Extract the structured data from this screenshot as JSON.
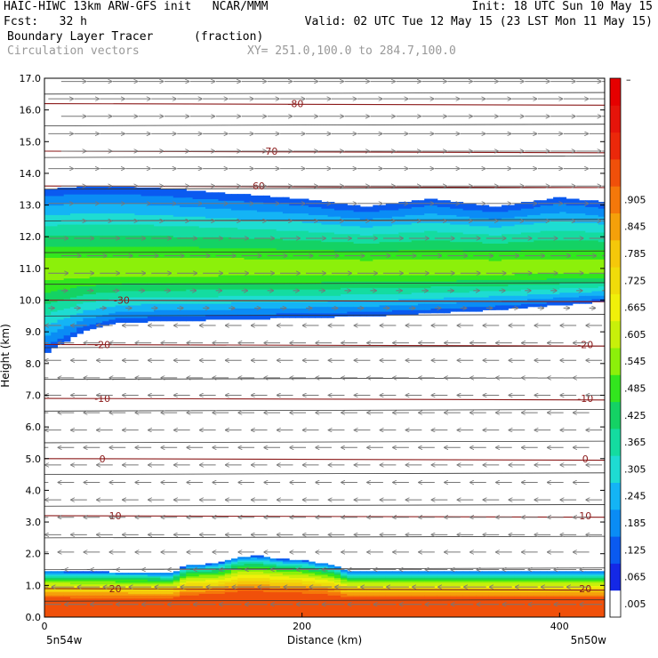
{
  "header": {
    "line1_left": "HAIC-HIWC 13km ARW-GFS init   NCAR/MMM",
    "line1_right": "Init: 18 UTC Sun 10 May 15",
    "line2_left": "Fcst:   32 h",
    "line2_right": "Valid: 02 UTC Tue 12 May 15 (23 LST Mon 11 May 15)",
    "line3_left": "Boundary Layer Tracer",
    "line3_mid": "(fraction)",
    "line4_left": "Circulation vectors",
    "line4_mid": "XY= 251.0,100.0 to 284.7,100.0"
  },
  "chart_data": {
    "type": "heatmap",
    "xlabel": "Distance (km)",
    "ylabel": "Height (km)",
    "xlim": [
      0,
      435
    ],
    "ylim": [
      0,
      17
    ],
    "x_ticks": [
      0,
      200,
      400
    ],
    "x_tick_labels": [
      "0",
      "200",
      "400"
    ],
    "x_corner_labels": {
      "left": "5n54w",
      "right": "5n50w"
    },
    "y_ticks": [
      0,
      1,
      2,
      3,
      4,
      5,
      6,
      7,
      8,
      9,
      10,
      11,
      12,
      13,
      14,
      15,
      16,
      17
    ],
    "y_tick_labels": [
      "0.0",
      "1.0",
      "2.0",
      "3.0",
      "4.0",
      "5.0",
      "6.0",
      "7.0",
      "8.0",
      "9.0",
      "10.0",
      "11.0",
      "12.0",
      "13.0",
      "14.0",
      "15.0",
      "16.0",
      "17.0"
    ],
    "colorbar": {
      "labels": [
        ".005",
        ".065",
        ".125",
        ".185",
        ".245",
        ".305",
        ".365",
        ".425",
        ".485",
        ".545",
        ".605",
        ".665",
        ".725",
        ".785",
        ".845",
        ".905"
      ],
      "top_label": "–",
      "colors": [
        "#ffffff",
        "#1428e6",
        "#0a5af0",
        "#0a8cf5",
        "#14b4f5",
        "#1edcd2",
        "#14dca0",
        "#14d264",
        "#32e61e",
        "#8cf00a",
        "#c8f00a",
        "#f0f00a",
        "#f0dc0a",
        "#f5c80a",
        "#f5a00a",
        "#f5780a",
        "#f0500a",
        "#eb280a",
        "#e6140a",
        "#e60000"
      ]
    },
    "tracer_upper_layer": {
      "x": [
        0,
        30,
        60,
        100,
        150,
        200,
        250,
        300,
        350,
        400,
        435
      ],
      "top_km": [
        13.5,
        13.6,
        13.6,
        13.5,
        13.35,
        13.2,
        12.95,
        13.2,
        12.95,
        13.25,
        13.1
      ],
      "bottom_km": [
        8.3,
        9.0,
        9.3,
        9.35,
        9.4,
        9.45,
        9.5,
        9.6,
        9.7,
        9.85,
        9.95
      ],
      "max_fraction": 0.545,
      "core_km": 11.0
    },
    "tracer_boundary_layer": {
      "x": [
        0,
        100,
        110,
        135,
        150,
        165,
        180,
        200,
        225,
        235,
        260,
        435
      ],
      "top_km": [
        1.45,
        1.4,
        1.65,
        1.7,
        1.9,
        1.95,
        1.85,
        1.8,
        1.65,
        1.45,
        1.45,
        1.45
      ],
      "max_fraction": 0.965
    },
    "contours": [
      {
        "label": "-80",
        "height_km": 16.2
      },
      {
        "label": "-70",
        "height_km": 14.7
      },
      {
        "label": "-60",
        "height_km": 13.6
      },
      {
        "label": "-30",
        "height_km": 10.0
      },
      {
        "label": "-20",
        "height_km": 8.6
      },
      {
        "label": "-10",
        "height_km": 6.9
      },
      {
        "label": "0",
        "height_km": 5.0
      },
      {
        "label": "10",
        "height_km": 3.2
      },
      {
        "label": "20",
        "height_km": 0.9
      }
    ],
    "contour_labels": [
      {
        "text": "-80",
        "x": 195,
        "y": 16.2
      },
      {
        "text": "-70",
        "x": 175,
        "y": 14.7
      },
      {
        "text": "-60",
        "x": 165,
        "y": 13.6
      },
      {
        "text": "-30",
        "x": 60,
        "y": 10.0
      },
      {
        "text": "-20",
        "x": 45,
        "y": 8.6
      },
      {
        "text": "-20",
        "x": 420,
        "y": 8.6
      },
      {
        "text": "-10",
        "x": 45,
        "y": 6.9
      },
      {
        "text": "-10",
        "x": 420,
        "y": 6.9
      },
      {
        "text": "0",
        "x": 45,
        "y": 5.0
      },
      {
        "text": "0",
        "x": 420,
        "y": 5.0
      },
      {
        "text": "10",
        "x": 55,
        "y": 3.2
      },
      {
        "text": "10",
        "x": 420,
        "y": 3.2
      },
      {
        "text": "20",
        "x": 55,
        "y": 0.9
      },
      {
        "text": "20",
        "x": 420,
        "y": 0.9
      }
    ],
    "vector_field": [
      {
        "z_from": 12.0,
        "u": 1.0,
        "w": 0.0
      },
      {
        "z_from": 10.5,
        "u": 0.8,
        "w": 0.0
      },
      {
        "z_from": 9.3,
        "u": 0.25,
        "w": 0.0
      },
      {
        "z_from": 2.0,
        "u": -0.65,
        "w": 0.0
      },
      {
        "z_from": 0.0,
        "u": -0.9,
        "w": 0.0
      }
    ]
  }
}
